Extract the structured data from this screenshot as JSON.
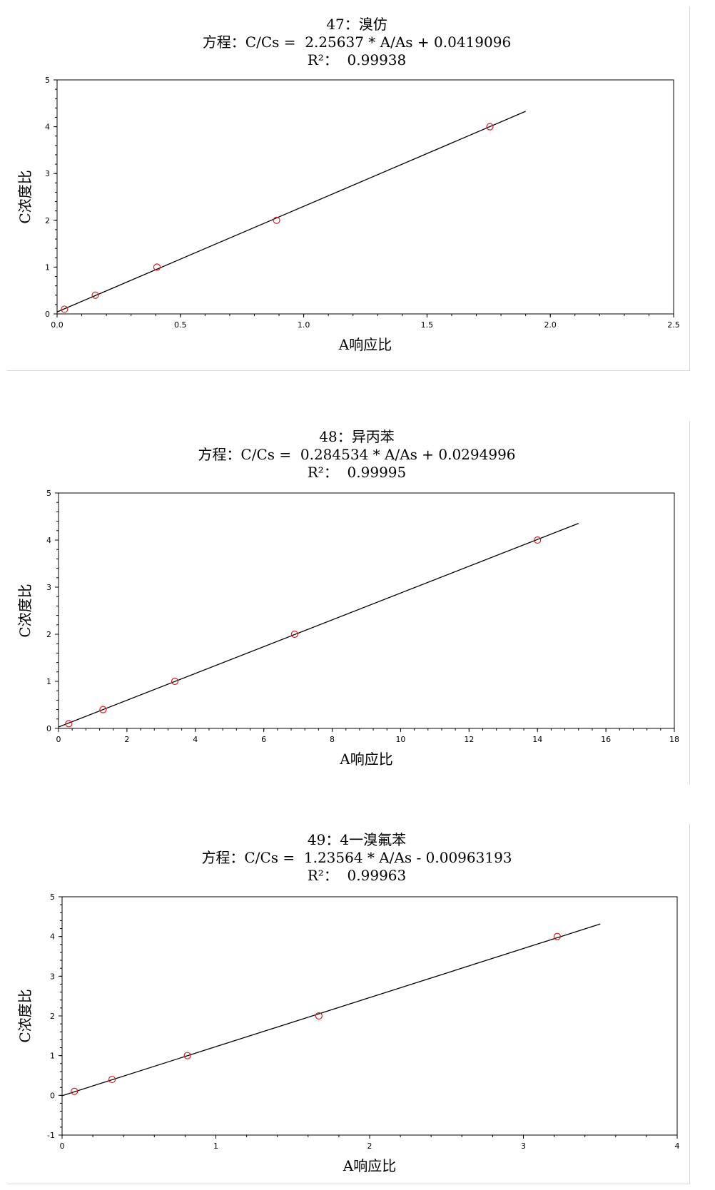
{
  "chart_data": [
    {
      "type": "scatter",
      "title": "47：溴仿",
      "equation": "方程：C/Cs =  2.25637 * A/As + 0.0419096",
      "r2": "R²：  0.99938",
      "xlabel": "A响应比",
      "ylabel": "C浓度比",
      "xlim": [
        0,
        2.5
      ],
      "ylim": [
        0,
        5
      ],
      "xticks": [
        "0.0",
        "0.5",
        "1.0",
        "1.5",
        "2.0",
        "2.5"
      ],
      "yticks": [
        "0",
        "1",
        "2",
        "3",
        "4",
        "5"
      ],
      "points": [
        {
          "x": 0.03,
          "y": 0.1
        },
        {
          "x": 0.155,
          "y": 0.4
        },
        {
          "x": 0.405,
          "y": 1.0
        },
        {
          "x": 0.89,
          "y": 2.0
        },
        {
          "x": 1.755,
          "y": 4.0
        }
      ],
      "fit_line": {
        "x_start": 0.0,
        "x_end": 1.9,
        "slope": 2.25637,
        "intercept": 0.0419096
      },
      "marker_color": "#d62020",
      "line_color": "#000000"
    },
    {
      "type": "scatter",
      "title": "48：异丙苯",
      "equation": "方程：C/Cs =  0.284534 * A/As + 0.0294996",
      "r2": "R²：  0.99995",
      "xlabel": "A响应比",
      "ylabel": "C浓度比",
      "xlim": [
        0,
        18
      ],
      "ylim": [
        0,
        5
      ],
      "xticks": [
        "0",
        "2",
        "4",
        "6",
        "8",
        "10",
        "12",
        "14",
        "16",
        "18"
      ],
      "yticks": [
        "0",
        "1",
        "2",
        "3",
        "4",
        "5"
      ],
      "points": [
        {
          "x": 0.3,
          "y": 0.1
        },
        {
          "x": 1.3,
          "y": 0.4
        },
        {
          "x": 3.4,
          "y": 1.0
        },
        {
          "x": 6.9,
          "y": 2.0
        },
        {
          "x": 14.0,
          "y": 4.0
        }
      ],
      "fit_line": {
        "x_start": 0.0,
        "x_end": 15.2,
        "slope": 0.284534,
        "intercept": 0.0294996
      },
      "marker_color": "#d62020",
      "line_color": "#000000"
    },
    {
      "type": "scatter",
      "title": "49：4一溴氟苯",
      "equation": "方程：C/Cs =  1.23564 * A/As - 0.00963193",
      "r2": "R²：  0.99963",
      "xlabel": "A响应比",
      "ylabel": "C浓度比",
      "xlim": [
        0,
        4
      ],
      "ylim": [
        -1,
        5
      ],
      "xticks": [
        "0",
        "1",
        "2",
        "3",
        "4"
      ],
      "yticks": [
        "-1",
        "0",
        "1",
        "2",
        "3",
        "4",
        "5"
      ],
      "points": [
        {
          "x": 0.08,
          "y": 0.1
        },
        {
          "x": 0.325,
          "y": 0.4
        },
        {
          "x": 0.815,
          "y": 1.0
        },
        {
          "x": 1.67,
          "y": 2.0
        },
        {
          "x": 3.22,
          "y": 4.0
        }
      ],
      "fit_line": {
        "x_start": 0.0,
        "x_end": 3.5,
        "slope": 1.23564,
        "intercept": -0.00963193
      },
      "marker_color": "#d62020",
      "line_color": "#000000"
    }
  ]
}
